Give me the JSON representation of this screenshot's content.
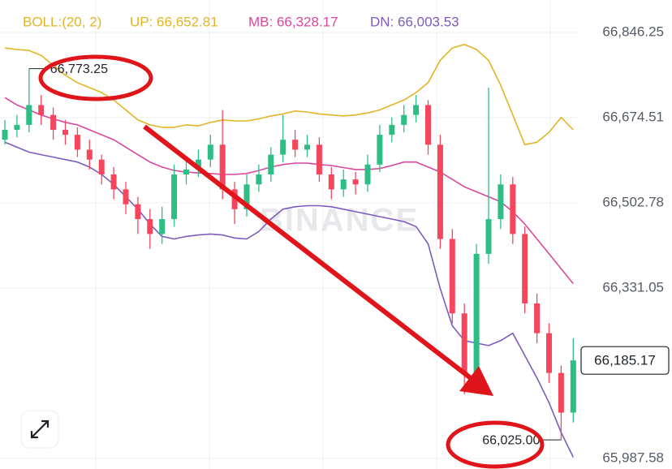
{
  "chart_data": {
    "type": "candlestick",
    "indicator": {
      "label": "BOLL:(20, 2)",
      "color": "#e2b526",
      "lines": [
        {
          "label": "UP: 66,652.81",
          "color": "#e2b526",
          "values": [
            66815,
            66812,
            66810,
            66800,
            66780,
            66760,
            66745,
            66735,
            66725,
            66710,
            66690,
            66670,
            66660,
            66655,
            66655,
            66660,
            66658,
            66665,
            66670,
            66668,
            66668,
            66672,
            66678,
            66682,
            66688,
            66686,
            66682,
            66680,
            66678,
            66680,
            66684,
            66690,
            66700,
            66710,
            66725,
            66745,
            66790,
            66815,
            66822,
            66812,
            66790,
            66740,
            66680,
            66620,
            66625,
            66645,
            66675,
            66650
          ]
        },
        {
          "label": "MB: 66,328.17",
          "color": "#d9489f",
          "values": [
            66715,
            66700,
            66690,
            66680,
            66672,
            66665,
            66660,
            66650,
            66640,
            66630,
            66615,
            66600,
            66585,
            66575,
            66568,
            66565,
            66563,
            66562,
            66560,
            66560,
            66562,
            66568,
            66575,
            66580,
            66583,
            66583,
            66580,
            66578,
            66574,
            66570,
            66570,
            66572,
            66578,
            66585,
            66585,
            66575,
            66565,
            66550,
            66535,
            66525,
            66515,
            66505,
            66485,
            66460,
            66430,
            66400,
            66370,
            66340
          ]
        },
        {
          "label": "DN: 66,003.53",
          "color": "#7d5bbf",
          "values": [
            66625,
            66615,
            66605,
            66600,
            66595,
            66590,
            66585,
            66575,
            66560,
            66540,
            66515,
            66490,
            66460,
            66435,
            66430,
            66435,
            66438,
            66440,
            66438,
            66432,
            66430,
            66445,
            66470,
            66490,
            66495,
            66497,
            66497,
            66495,
            66490,
            66485,
            66480,
            66475,
            66470,
            66465,
            66455,
            66420,
            66330,
            66255,
            66225,
            66220,
            66215,
            66225,
            66240,
            66195,
            66150,
            66100,
            66040,
            65990
          ]
        }
      ]
    },
    "open": [
      66630,
      66650,
      66660,
      66700,
      66680,
      66650,
      66640,
      66610,
      66590,
      66560,
      66530,
      66500,
      66470,
      66440,
      66470,
      66560,
      66570,
      66590,
      66620,
      66530,
      66490,
      66540,
      66560,
      66600,
      66630,
      66610,
      66620,
      66560,
      66530,
      66550,
      66540,
      66580,
      66640,
      66660,
      66680,
      66700,
      66620,
      66430,
      66280,
      66160,
      66400,
      66470,
      66540,
      66440,
      66300,
      66240,
      66160,
      66080
    ],
    "high": [
      66670,
      66680,
      66773.25,
      66720,
      66695,
      66670,
      66655,
      66630,
      66600,
      66575,
      66545,
      66515,
      66490,
      66495,
      66580,
      66595,
      66610,
      66640,
      66690,
      66545,
      66560,
      66580,
      66615,
      66680,
      66650,
      66640,
      66635,
      66575,
      66570,
      66565,
      66600,
      66660,
      66675,
      66700,
      66720,
      66710,
      66640,
      66450,
      66300,
      66420,
      66735,
      66560,
      66555,
      66455,
      66320,
      66260,
      66175,
      66230
    ],
    "low": [
      66620,
      66635,
      66645,
      66660,
      66630,
      66620,
      66595,
      66570,
      66540,
      66510,
      66480,
      66440,
      66410,
      66420,
      66455,
      66540,
      66555,
      66575,
      66510,
      66460,
      66475,
      66525,
      66545,
      66585,
      66595,
      66595,
      66545,
      66510,
      66515,
      66520,
      66525,
      66565,
      66625,
      66645,
      66665,
      66600,
      66410,
      66260,
      66117,
      66140,
      66380,
      66450,
      66420,
      66280,
      66220,
      66140,
      66025,
      66060
    ],
    "close": [
      66650,
      66660,
      66700,
      66680,
      66650,
      66640,
      66610,
      66590,
      66560,
      66530,
      66500,
      66470,
      66440,
      66470,
      66560,
      66570,
      66590,
      66620,
      66530,
      66490,
      66540,
      66560,
      66600,
      66630,
      66610,
      66620,
      66560,
      66530,
      66550,
      66540,
      66580,
      66640,
      66660,
      66680,
      66700,
      66620,
      66430,
      66280,
      66160,
      66400,
      66470,
      66540,
      66440,
      66300,
      66240,
      66160,
      66080,
      66185.17
    ],
    "up_color": "#2ebd85",
    "down_color": "#f6465d",
    "ylim": [
      65966.3,
      66911.7
    ],
    "yticks": [
      {
        "value": 66846.25,
        "label": "66,846.25"
      },
      {
        "value": 66674.51,
        "label": "66,674.51"
      },
      {
        "value": 66502.78,
        "label": "66,502.78"
      },
      {
        "value": 66331.05,
        "label": "66,331.05"
      },
      {
        "value": 65987.58,
        "label": "65,987.58"
      }
    ],
    "grid": true,
    "high_marker": {
      "value": 66773.25,
      "label": "66,773.25",
      "index": 2
    },
    "low_marker": {
      "value": 66025.0,
      "label": "66,025.00",
      "index": 46
    },
    "last_price": {
      "value": 66185.17,
      "label": "66,185.17"
    },
    "watermark": "BINANCE"
  }
}
